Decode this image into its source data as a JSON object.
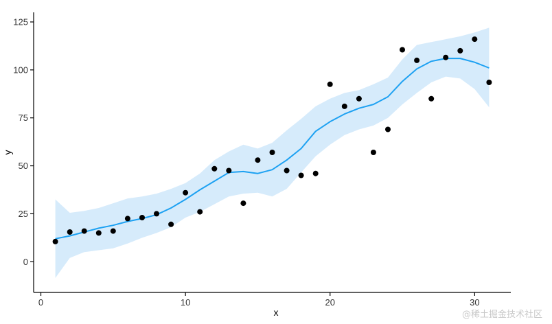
{
  "chart_data": {
    "type": "scatter",
    "title": "",
    "xlabel": "x",
    "ylabel": "y",
    "xlim": [
      -0.5,
      32.5
    ],
    "ylim": [
      -16,
      130
    ],
    "x_ticks": [
      0,
      10,
      20,
      30
    ],
    "y_ticks": [
      0,
      25,
      50,
      75,
      100,
      125
    ],
    "grid": false,
    "legend": "none",
    "points": {
      "x": [
        1,
        2,
        3,
        4,
        5,
        6,
        7,
        8,
        9,
        10,
        11,
        12,
        13,
        14,
        15,
        16,
        17,
        18,
        19,
        20,
        21,
        22,
        23,
        24,
        25,
        26,
        27,
        28,
        29,
        30,
        31
      ],
      "y": [
        10.5,
        15.5,
        16,
        15,
        16,
        22.5,
        23,
        25,
        19.5,
        36,
        26,
        48.5,
        47.5,
        30.5,
        53,
        57,
        47.5,
        45,
        46,
        92.5,
        81,
        85,
        57,
        69,
        110.5,
        105,
        85,
        106.5,
        110,
        116,
        93.5
      ],
      "color": "#000000"
    },
    "smooth": {
      "x": [
        1,
        2,
        3,
        4,
        5,
        6,
        7,
        8,
        9,
        10,
        11,
        12,
        13,
        14,
        15,
        16,
        17,
        18,
        19,
        20,
        21,
        22,
        23,
        24,
        25,
        26,
        27,
        28,
        29,
        30,
        31
      ],
      "y": [
        12,
        13.5,
        15.5,
        17.5,
        19,
        21,
        22.5,
        24.5,
        28,
        32.5,
        37.5,
        42,
        46.5,
        47,
        46,
        48,
        53,
        59,
        68,
        73,
        77,
        80,
        82,
        86,
        94,
        100.5,
        104.5,
        106,
        106,
        104,
        101
      ],
      "lower": [
        -8.5,
        2,
        5,
        6,
        7,
        9.5,
        12.5,
        15,
        18,
        23,
        26,
        30,
        34,
        35.5,
        36,
        34,
        38,
        46.5,
        55,
        61,
        66,
        69,
        71,
        75,
        82,
        88,
        93.5,
        96.5,
        95.5,
        90,
        80.5
      ],
      "upper": [
        32.5,
        25.5,
        26.5,
        28,
        30.5,
        33,
        34,
        35.5,
        38,
        41,
        46,
        53,
        57.5,
        61,
        59,
        62,
        68.5,
        74.5,
        81,
        85,
        88,
        89.5,
        92.5,
        96,
        105.5,
        113,
        114.5,
        116,
        117.5,
        119.5,
        122
      ],
      "line_color": "#1da1f2",
      "band_color": "#d6ebfb"
    }
  },
  "watermark": "@稀土掘金技术社区"
}
